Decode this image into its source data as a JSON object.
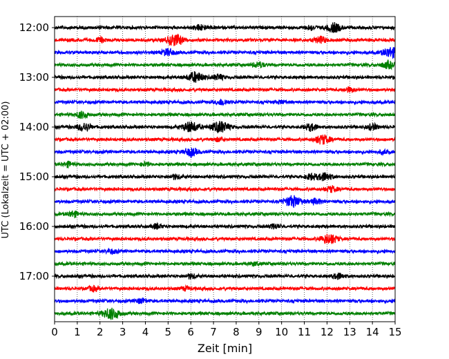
{
  "chart_data": {
    "type": "line",
    "title": "",
    "xlabel": "Zeit  [min]",
    "ylabel": "UTC (Lokalzeit = UTC + 02:00)",
    "xlim": [
      0,
      15
    ],
    "x_ticks": [
      "0",
      "1",
      "2",
      "3",
      "4",
      "5",
      "6",
      "7",
      "8",
      "9",
      "10",
      "11",
      "12",
      "13",
      "14",
      "15"
    ],
    "y_ticks": [
      {
        "label": "12:00",
        "hour": 12
      },
      {
        "label": "13:00",
        "hour": 13
      },
      {
        "label": "14:00",
        "hour": 14
      },
      {
        "label": "15:00",
        "hour": 15
      },
      {
        "label": "16:00",
        "hour": 16
      },
      {
        "label": "17:00",
        "hour": 17
      }
    ],
    "grid": "vertical-dotted",
    "trace_interval_min": 15,
    "trace_colors": [
      "#000000",
      "#ff0000",
      "#0000ff",
      "#008000"
    ],
    "traces": [
      {
        "start": "12:00",
        "color": "#000000",
        "events": [
          {
            "t": 6.4,
            "a": 0.5
          },
          {
            "t": 11.3,
            "a": 0.4
          },
          {
            "t": 12.3,
            "a": 0.8
          }
        ]
      },
      {
        "start": "12:15",
        "color": "#ff0000",
        "events": [
          {
            "t": 2.0,
            "a": 0.4
          },
          {
            "t": 5.3,
            "a": 1.0
          },
          {
            "t": 11.7,
            "a": 0.6
          }
        ]
      },
      {
        "start": "12:30",
        "color": "#0000ff",
        "events": [
          {
            "t": 5.0,
            "a": 0.6
          },
          {
            "t": 14.8,
            "a": 0.9
          }
        ]
      },
      {
        "start": "12:45",
        "color": "#008000",
        "events": [
          {
            "t": 9.0,
            "a": 0.5
          },
          {
            "t": 14.7,
            "a": 0.6
          }
        ]
      },
      {
        "start": "13:00",
        "color": "#000000",
        "events": [
          {
            "t": 6.2,
            "a": 0.9
          },
          {
            "t": 7.2,
            "a": 0.5
          }
        ]
      },
      {
        "start": "13:15",
        "color": "#ff0000",
        "events": [
          {
            "t": 13.0,
            "a": 0.4
          }
        ]
      },
      {
        "start": "13:30",
        "color": "#0000ff",
        "events": [
          {
            "t": 7.4,
            "a": 0.5
          },
          {
            "t": 10.0,
            "a": 0.3
          }
        ]
      },
      {
        "start": "13:45",
        "color": "#008000",
        "events": [
          {
            "t": 1.2,
            "a": 0.6
          }
        ]
      },
      {
        "start": "14:00",
        "color": "#000000",
        "events": [
          {
            "t": 1.3,
            "a": 0.7
          },
          {
            "t": 6.0,
            "a": 0.9
          },
          {
            "t": 7.3,
            "a": 1.0
          },
          {
            "t": 11.3,
            "a": 0.6
          },
          {
            "t": 14.0,
            "a": 0.5
          }
        ]
      },
      {
        "start": "14:15",
        "color": "#ff0000",
        "events": [
          {
            "t": 7.2,
            "a": 0.3
          },
          {
            "t": 11.8,
            "a": 0.8
          }
        ]
      },
      {
        "start": "14:30",
        "color": "#0000ff",
        "events": [
          {
            "t": 6.0,
            "a": 0.7
          },
          {
            "t": 14.5,
            "a": 0.3
          }
        ]
      },
      {
        "start": "14:45",
        "color": "#008000",
        "events": [
          {
            "t": 0.6,
            "a": 0.4
          },
          {
            "t": 4.0,
            "a": 0.3
          }
        ]
      },
      {
        "start": "15:00",
        "color": "#000000",
        "events": [
          {
            "t": 5.3,
            "a": 0.4
          },
          {
            "t": 11.3,
            "a": 0.5
          },
          {
            "t": 11.9,
            "a": 0.7
          }
        ]
      },
      {
        "start": "15:15",
        "color": "#ff0000",
        "events": [
          {
            "t": 12.2,
            "a": 0.5
          }
        ]
      },
      {
        "start": "15:30",
        "color": "#0000ff",
        "events": [
          {
            "t": 10.5,
            "a": 1.0
          },
          {
            "t": 11.5,
            "a": 0.5
          }
        ]
      },
      {
        "start": "15:45",
        "color": "#008000",
        "events": [
          {
            "t": 0.8,
            "a": 0.5
          }
        ]
      },
      {
        "start": "16:00",
        "color": "#000000",
        "events": [
          {
            "t": 4.5,
            "a": 0.4
          },
          {
            "t": 9.7,
            "a": 0.4
          }
        ]
      },
      {
        "start": "16:15",
        "color": "#ff0000",
        "events": [
          {
            "t": 12.1,
            "a": 0.9
          }
        ]
      },
      {
        "start": "16:30",
        "color": "#0000ff",
        "events": [
          {
            "t": 2.5,
            "a": 0.4
          }
        ]
      },
      {
        "start": "16:45",
        "color": "#008000",
        "events": [
          {
            "t": 8.8,
            "a": 0.3
          }
        ]
      },
      {
        "start": "17:00",
        "color": "#000000",
        "events": [
          {
            "t": 6.0,
            "a": 0.4
          },
          {
            "t": 12.5,
            "a": 0.5
          }
        ]
      },
      {
        "start": "17:15",
        "color": "#ff0000",
        "events": [
          {
            "t": 1.7,
            "a": 0.4
          },
          {
            "t": 5.8,
            "a": 0.3
          }
        ]
      },
      {
        "start": "17:30",
        "color": "#0000ff",
        "events": [
          {
            "t": 3.8,
            "a": 0.4
          }
        ]
      },
      {
        "start": "17:45",
        "color": "#008000",
        "events": [
          {
            "t": 2.5,
            "a": 1.0
          }
        ]
      }
    ]
  }
}
